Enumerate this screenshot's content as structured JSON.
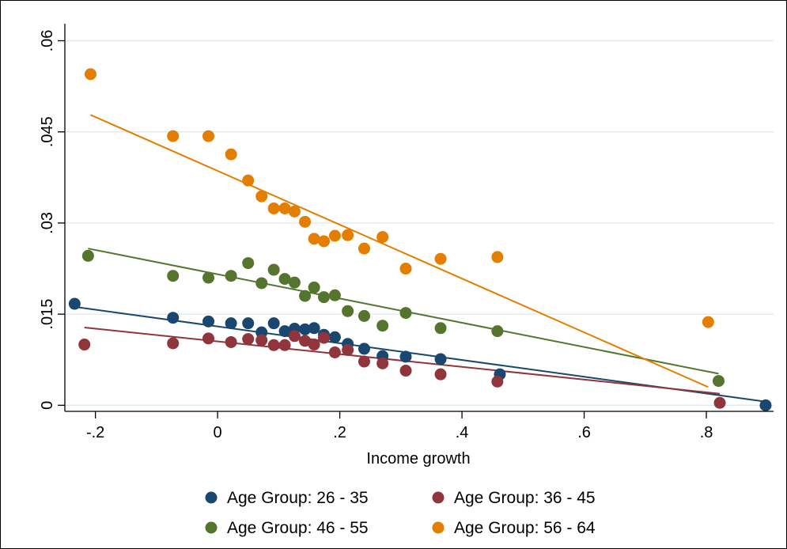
{
  "chart_data": {
    "type": "scatter",
    "title": "",
    "xlabel": "Income growth",
    "ylabel": "",
    "xlim": [
      -0.25,
      0.91
    ],
    "ylim": [
      -0.001,
      0.0628
    ],
    "x_ticks": [
      {
        "value": -0.2,
        "label": "-.2"
      },
      {
        "value": 0,
        "label": "0"
      },
      {
        "value": 0.2,
        "label": ".2"
      },
      {
        "value": 0.4,
        "label": ".4"
      },
      {
        "value": 0.6,
        "label": ".6"
      },
      {
        "value": 0.8,
        "label": ".8"
      }
    ],
    "y_ticks": [
      {
        "value": 0,
        "label": "0"
      },
      {
        "value": 0.015,
        "label": ".015"
      },
      {
        "value": 0.03,
        "label": ".03"
      },
      {
        "value": 0.045,
        "label": ".045"
      },
      {
        "value": 0.06,
        "label": ".06"
      }
    ],
    "grid": true,
    "legend_position": "bottom",
    "series": [
      {
        "name": "Age Group: 26 - 35",
        "color": "#1a476f",
        "points": [
          [
            -0.234,
            0.0167
          ],
          [
            -0.073,
            0.0144
          ],
          [
            -0.015,
            0.0138
          ],
          [
            0.022,
            0.0135
          ],
          [
            0.05,
            0.0135
          ],
          [
            0.072,
            0.012
          ],
          [
            0.092,
            0.0135
          ],
          [
            0.11,
            0.0122
          ],
          [
            0.126,
            0.0126
          ],
          [
            0.143,
            0.0125
          ],
          [
            0.158,
            0.0127
          ],
          [
            0.174,
            0.0116
          ],
          [
            0.192,
            0.0112
          ],
          [
            0.213,
            0.0101
          ],
          [
            0.24,
            0.0093
          ],
          [
            0.27,
            0.0081
          ],
          [
            0.308,
            0.008
          ],
          [
            0.365,
            0.0076
          ],
          [
            0.462,
            0.0051
          ],
          [
            0.897,
            0.0
          ]
        ],
        "fit": [
          [
            -0.234,
            0.0162
          ],
          [
            0.897,
            0.0006
          ]
        ]
      },
      {
        "name": "Age Group: 36 - 45",
        "color": "#90353b",
        "points": [
          [
            -0.218,
            0.01
          ],
          [
            -0.073,
            0.0102
          ],
          [
            -0.015,
            0.011
          ],
          [
            0.022,
            0.0104
          ],
          [
            0.05,
            0.0109
          ],
          [
            0.072,
            0.0107
          ],
          [
            0.092,
            0.0099
          ],
          [
            0.11,
            0.0099
          ],
          [
            0.126,
            0.0114
          ],
          [
            0.143,
            0.0106
          ],
          [
            0.158,
            0.01
          ],
          [
            0.174,
            0.0111
          ],
          [
            0.192,
            0.0087
          ],
          [
            0.213,
            0.0091
          ],
          [
            0.24,
            0.0072
          ],
          [
            0.27,
            0.0069
          ],
          [
            0.308,
            0.0057
          ],
          [
            0.365,
            0.0051
          ],
          [
            0.458,
            0.0039
          ],
          [
            0.822,
            0.0004
          ]
        ],
        "fit": [
          [
            -0.218,
            0.0128
          ],
          [
            0.822,
            0.0019
          ]
        ]
      },
      {
        "name": "Age Group: 46 - 55",
        "color": "#55752f",
        "points": [
          [
            -0.212,
            0.0246
          ],
          [
            -0.073,
            0.0213
          ],
          [
            -0.015,
            0.021
          ],
          [
            0.022,
            0.0213
          ],
          [
            0.05,
            0.0234
          ],
          [
            0.072,
            0.0201
          ],
          [
            0.092,
            0.0223
          ],
          [
            0.11,
            0.0208
          ],
          [
            0.126,
            0.0202
          ],
          [
            0.143,
            0.018
          ],
          [
            0.158,
            0.0194
          ],
          [
            0.174,
            0.0178
          ],
          [
            0.192,
            0.0181
          ],
          [
            0.213,
            0.0155
          ],
          [
            0.24,
            0.0147
          ],
          [
            0.27,
            0.0131
          ],
          [
            0.308,
            0.0152
          ],
          [
            0.365,
            0.0127
          ],
          [
            0.458,
            0.0122
          ],
          [
            0.82,
            0.004
          ]
        ],
        "fit": [
          [
            -0.212,
            0.0258
          ],
          [
            0.82,
            0.0052
          ]
        ]
      },
      {
        "name": "Age Group: 56 - 64",
        "color": "#e37e00",
        "points": [
          [
            -0.208,
            0.0545
          ],
          [
            -0.073,
            0.0443
          ],
          [
            -0.015,
            0.0443
          ],
          [
            0.022,
            0.0413
          ],
          [
            0.05,
            0.037
          ],
          [
            0.072,
            0.0344
          ],
          [
            0.092,
            0.0324
          ],
          [
            0.11,
            0.0324
          ],
          [
            0.126,
            0.0319
          ],
          [
            0.143,
            0.0302
          ],
          [
            0.158,
            0.0274
          ],
          [
            0.174,
            0.027
          ],
          [
            0.192,
            0.0279
          ],
          [
            0.213,
            0.028
          ],
          [
            0.24,
            0.0258
          ],
          [
            0.27,
            0.0277
          ],
          [
            0.308,
            0.0225
          ],
          [
            0.365,
            0.0241
          ],
          [
            0.458,
            0.0244
          ],
          [
            0.803,
            0.0137
          ]
        ],
        "fit": [
          [
            -0.208,
            0.0478
          ],
          [
            0.803,
            0.003
          ]
        ]
      }
    ]
  }
}
